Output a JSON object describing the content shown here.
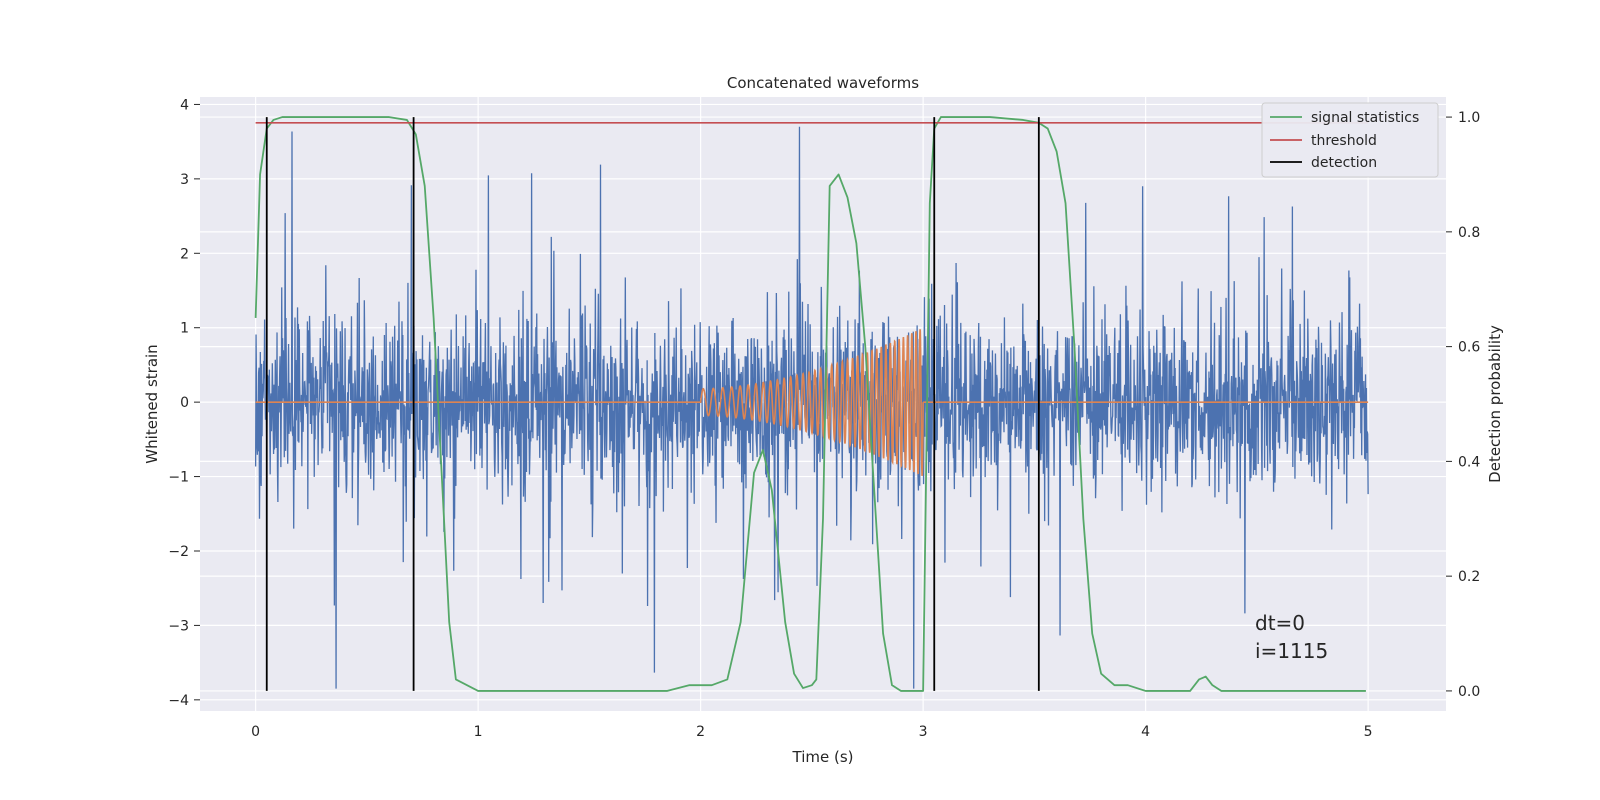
{
  "chart_data": {
    "type": "line",
    "title": "Concatenated waveforms",
    "xlabel": "Time (s)",
    "ylabel": "Whitened strain",
    "y2label": "Detection probability",
    "xlim": [
      -0.25,
      5.35
    ],
    "ylim": [
      -4.15,
      4.1
    ],
    "y2lim": [
      -0.035,
      1.035
    ],
    "xticks": [
      0,
      1,
      2,
      3,
      4,
      5
    ],
    "yticks": [
      -4,
      -3,
      -2,
      -1,
      0,
      1,
      2,
      3,
      4
    ],
    "y2ticks": [
      0.0,
      0.2,
      0.4,
      0.6,
      0.8,
      1.0
    ],
    "grid": true,
    "legend_position": "top-right",
    "colors": {
      "background": "#eaeaf2",
      "noise": "#4c72b0",
      "template": "#dd8452",
      "signal_statistics": "#55a868",
      "threshold": "#c44e52",
      "detection": "#000000"
    },
    "series": [
      {
        "name": "signal statistics",
        "axis": "right",
        "x": [
          0.0,
          0.02,
          0.05,
          0.08,
          0.12,
          0.2,
          0.4,
          0.6,
          0.68,
          0.72,
          0.76,
          0.8,
          0.84,
          0.87,
          0.9,
          1.0,
          1.5,
          1.85,
          1.95,
          2.05,
          2.12,
          2.18,
          2.24,
          2.28,
          2.32,
          2.38,
          2.42,
          2.46,
          2.5,
          2.52,
          2.55,
          2.58,
          2.62,
          2.66,
          2.7,
          2.74,
          2.78,
          2.82,
          2.86,
          2.9,
          2.95,
          3.0,
          3.03,
          3.05,
          3.08,
          3.15,
          3.3,
          3.45,
          3.52,
          3.56,
          3.6,
          3.64,
          3.68,
          3.72,
          3.76,
          3.8,
          3.86,
          3.92,
          4.0,
          4.2,
          4.24,
          4.27,
          4.3,
          4.34,
          4.5,
          4.99
        ],
        "values": [
          0.65,
          0.9,
          0.98,
          0.995,
          1.0,
          1.0,
          1.0,
          1.0,
          0.995,
          0.97,
          0.88,
          0.65,
          0.35,
          0.12,
          0.02,
          0.0,
          0.0,
          0.0,
          0.01,
          0.01,
          0.02,
          0.12,
          0.38,
          0.42,
          0.35,
          0.12,
          0.03,
          0.005,
          0.01,
          0.02,
          0.3,
          0.88,
          0.9,
          0.86,
          0.78,
          0.6,
          0.35,
          0.1,
          0.01,
          0.0,
          0.0,
          0.0,
          0.85,
          0.98,
          1.0,
          1.0,
          1.0,
          0.995,
          0.99,
          0.98,
          0.94,
          0.85,
          0.6,
          0.3,
          0.1,
          0.03,
          0.01,
          0.01,
          0.0,
          0.0,
          0.02,
          0.025,
          0.01,
          0.0,
          0.0,
          0.0
        ]
      },
      {
        "name": "threshold",
        "axis": "right",
        "x": [
          0.0,
          5.0
        ],
        "values": [
          0.99,
          0.99
        ]
      },
      {
        "name": "detection",
        "axis": "right",
        "x": [
          0.05,
          0.71,
          3.05,
          3.52
        ],
        "range": [
          0.0,
          1.0
        ]
      }
    ],
    "noise_envelope": {
      "x": [
        0.0,
        0.5,
        1.0,
        1.5,
        2.0,
        2.5,
        3.0,
        3.5,
        4.0,
        4.5,
        5.0
      ],
      "dense_amplitude": 0.8,
      "max_spike": 3.7,
      "min_spike": -3.85
    },
    "template": {
      "x_start": 2.0,
      "x_end": 3.0,
      "amplitude_start": 0.18,
      "amplitude_end": 1.0,
      "cycles": 38
    },
    "annotations": [
      "dt=0",
      "i=1115"
    ],
    "legend": [
      "signal statistics",
      "threshold",
      "detection"
    ]
  }
}
